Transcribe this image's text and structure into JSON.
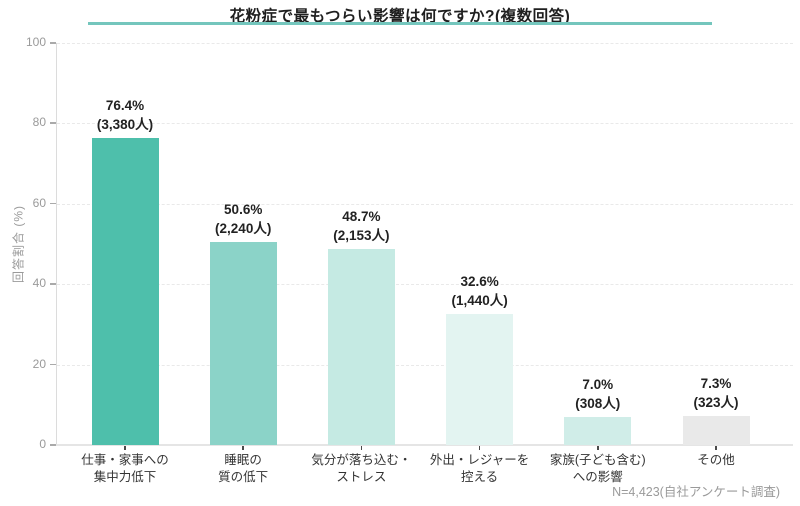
{
  "title": "花粉症で最もつらい影響は何ですか?(複数回答)",
  "footer": "N=4,423(自社アンケート調査)",
  "colors": {
    "title_underline": "#74c6bd",
    "grid": "#e9e9e9",
    "axis": "#dcdcdc",
    "tick_label": "#9a9a9a",
    "value_label": "#222222",
    "category_label": "#333333"
  },
  "chart_data": {
    "type": "bar",
    "title": "花粉症で最もつらい影響は何ですか?(複数回答)",
    "xlabel": "",
    "ylabel": "回答割合 (%)",
    "ylim": [
      0,
      100
    ],
    "yticks": [
      0,
      20,
      40,
      60,
      80,
      100
    ],
    "grid": "horizontal-dashed",
    "legend": "none",
    "note": "N=4,423(自社アンケート調査)",
    "categories": [
      "仕事・家事への集中力低下",
      "睡眠の質の低下",
      "気分が落ち込む・ストレス",
      "外出・レジャーを控える",
      "家族(子ども含む)への影響",
      "その他"
    ],
    "category_lines": [
      [
        "仕事・家事への",
        "集中力低下"
      ],
      [
        "睡眠の",
        "質の低下"
      ],
      [
        "気分が落ち込む・",
        "ストレス"
      ],
      [
        "外出・レジャーを",
        "控える"
      ],
      [
        "家族(子ども含む)",
        "への影響"
      ],
      [
        "その他"
      ]
    ],
    "values": [
      76.4,
      50.6,
      48.7,
      32.6,
      7.0,
      7.3
    ],
    "value_labels": [
      "76.4%",
      "50.6%",
      "48.7%",
      "32.6%",
      "7.0%",
      "7.3%"
    ],
    "count_labels": [
      "(3,380人)",
      "(2,240人)",
      "(2,153人)",
      "(1,440人)",
      "(308人)",
      "(323人)"
    ],
    "bar_colors": [
      "#4ebfab",
      "#8bd3c8",
      "#c5eae3",
      "#e3f4f1",
      "#d0ede8",
      "#e9e9e9"
    ]
  }
}
